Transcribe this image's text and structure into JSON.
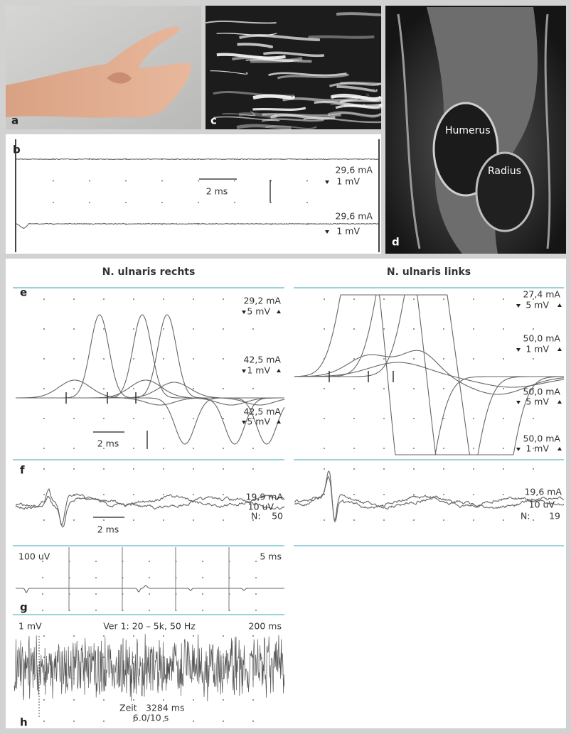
{
  "panel_labels": [
    "a",
    "b",
    "c",
    "d",
    "e",
    "f",
    "g",
    "h"
  ],
  "b": {
    "settings": [
      {
        "current": "29,6 mA",
        "gain": "1 mV"
      },
      {
        "current": "29,6 mA",
        "gain": "1 mV"
      }
    ],
    "time_bar": "2 ms"
  },
  "d": {
    "annotations": [
      "Humerus",
      "Radius"
    ]
  },
  "columns": [
    {
      "title": "N. ulnaris rechts",
      "e": {
        "settings": [
          {
            "current": "29,2 mA",
            "gain": "5 mV"
          },
          {
            "current": "42,5 mA",
            "gain": "1 mV"
          },
          {
            "current": "42,5 mA",
            "gain": "5 mV"
          }
        ],
        "time_bar": "2 ms"
      },
      "f": {
        "current": "19,9 mA",
        "gain": "10 uV",
        "n_label": "N:",
        "n": 50,
        "time_bar": "2 ms"
      }
    },
    {
      "title": "N. ulnaris links",
      "e": {
        "settings": [
          {
            "current": "27,4 mA",
            "gain": "5 mV"
          },
          {
            "current": "50,0 mA",
            "gain": "1 mV"
          },
          {
            "current": "50,0 mA",
            "gain": "5 mV"
          },
          {
            "current": "50,0 mA",
            "gain": "1 mV"
          }
        ]
      },
      "f": {
        "current": "19,6 mA",
        "gain": "10 uV",
        "n_label": "N:",
        "n": 19
      }
    }
  ],
  "g": {
    "gain": "100 uV",
    "sweep": "5 ms"
  },
  "h": {
    "gain": "1 mV",
    "filter": "Ver 1: 20 – 5k, 50 Hz",
    "sweep": "200 ms",
    "time_label": "Zeit",
    "time": "3284 ms",
    "rate": "6.0/10 s"
  }
}
